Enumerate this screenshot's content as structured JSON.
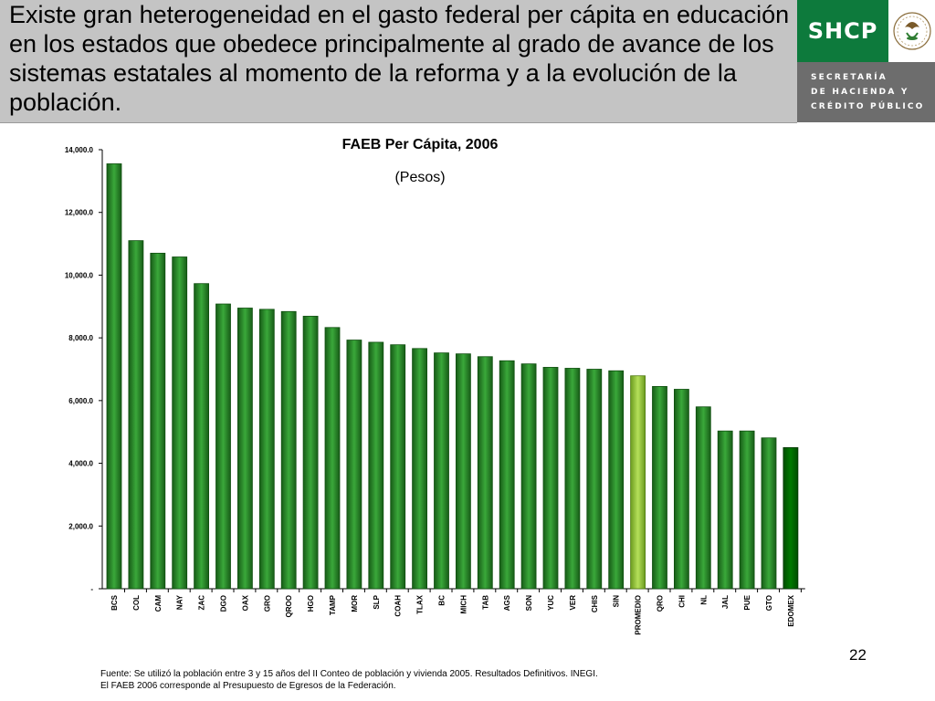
{
  "header": {
    "text": "Existe gran heterogeneidad en el gasto federal per cápita en educación en los estados que obedece principalmente al grado de avance de los sistemas estatales al momento de la reforma y a la evolución de la población."
  },
  "logo": {
    "brand": "SHCP",
    "line1": "SECRETARÍA",
    "line2": "DE HACIENDA Y",
    "line3": "CRÉDITO PÚBLICO"
  },
  "colors": {
    "bar": "#2e8b2e",
    "bar_dark": "#175c17",
    "highlight": "#9acd32",
    "last_bar": "#006400",
    "header_bg": "#c4c4c4",
    "logo_green": "#0d7a3c"
  },
  "chart_data": {
    "type": "bar",
    "title": "FAEB Per Cápita, 2006",
    "subtitle": "(Pesos)",
    "xlabel": "",
    "ylabel": "",
    "ylim": [
      0,
      14000
    ],
    "yticks": [
      "-",
      "2,000.0",
      "4,000.0",
      "6,000.0",
      "8,000.0",
      "10,000.0",
      "12,000.0",
      "14,000.0"
    ],
    "categories": [
      "BCS",
      "COL",
      "CAM",
      "NAY",
      "ZAC",
      "DGO",
      "OAX",
      "GRO",
      "QROO",
      "HGO",
      "TAMP",
      "MOR",
      "SLP",
      "COAH",
      "TLAX",
      "BC",
      "MICH",
      "TAB",
      "AGS",
      "SON",
      "YUC",
      "VER",
      "CHIS",
      "SIN",
      "PROMEDIO",
      "QRO",
      "CHI",
      "NL",
      "JAL",
      "PUE",
      "GTO",
      "EDOMEX"
    ],
    "values": [
      13550,
      11100,
      10700,
      10580,
      9730,
      9080,
      8950,
      8910,
      8840,
      8690,
      8330,
      7930,
      7860,
      7780,
      7660,
      7520,
      7490,
      7400,
      7270,
      7170,
      7060,
      7030,
      7000,
      6950,
      6790,
      6450,
      6360,
      5800,
      5030,
      5030,
      4810,
      4500
    ],
    "highlight_category": "PROMEDIO",
    "grid": false,
    "legend": "none"
  },
  "page_number": "22",
  "source": {
    "line1": "Fuente: Se utilizó la población entre 3 y 15 años del II Conteo de población y vivienda 2005. Resultados Definitivos. INEGI.",
    "line2": "El FAEB 2006 corresponde al Presupuesto de Egresos de la Federación."
  }
}
